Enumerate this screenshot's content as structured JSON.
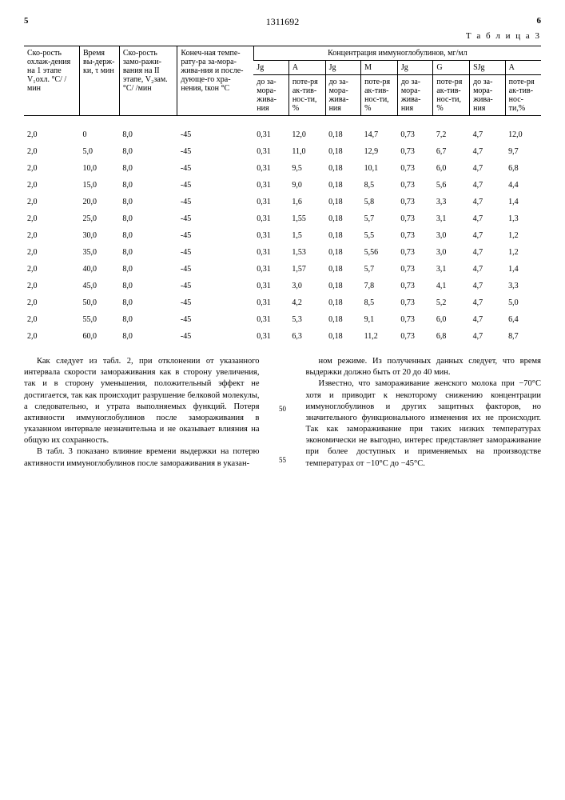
{
  "header": {
    "page_left": "5",
    "doc_number": "1311692",
    "page_right": "6",
    "table_label": "Т а б л и ц а   3"
  },
  "table": {
    "group_header": "Концентрация иммуноглобулинов, мг/мл",
    "col_headers": {
      "c1": "Ско-рость охлаж-дения на 1 этапе V₁охл. °C/ /мин",
      "c2": "Время вы-держ-ки, τ мин",
      "c3": "Ско-рость замо-ражи-вания на II этапе, V₂зам. °C/ /мин",
      "c4": "Конеч-ная темпе-рату-ра за-мора-жива-ния и после-дующе-го хра-нения, tкон °C"
    },
    "sub_headers": {
      "s1": "Jg",
      "s2": "A",
      "s3": "Jg",
      "s4": "M",
      "s5": "Jg",
      "s6": "G",
      "s7": "SJg",
      "s8": "A"
    },
    "sub2_headers": {
      "a1": "до за-мора-жива-ния",
      "a2": "поте-ря ак-тив-нос-ти, %",
      "a3": "до за-мора-жива-ния",
      "a4": "поте-ря ак-тив-нос-ти, %",
      "a5": "до за-мора-жива-ния",
      "a6": "поте-ря ак-тив-нос-ти, %",
      "a7": "до за-мора-жива-ния",
      "a8": "поте-ря ак-тив-нос-ти,%"
    },
    "rows": [
      [
        "2,0",
        "0",
        "8,0",
        "-45",
        "0,31",
        "12,0",
        "0,18",
        "14,7",
        "0,73",
        "7,2",
        "4,7",
        "12,0"
      ],
      [
        "2,0",
        "5,0",
        "8,0",
        "-45",
        "0,31",
        "11,0",
        "0,18",
        "12,9",
        "0,73",
        "6,7",
        "4,7",
        "9,7"
      ],
      [
        "2,0",
        "10,0",
        "8,0",
        "-45",
        "0,31",
        "9,5",
        "0,18",
        "10,1",
        "0,73",
        "6,0",
        "4,7",
        "6,8"
      ],
      [
        "2,0",
        "15,0",
        "8,0",
        "-45",
        "0,31",
        "9,0",
        "0,18",
        "8,5",
        "0,73",
        "5,6",
        "4,7",
        "4,4"
      ],
      [
        "2,0",
        "20,0",
        "8,0",
        "-45",
        "0,31",
        "1,6",
        "0,18",
        "5,8",
        "0,73",
        "3,3",
        "4,7",
        "1,4"
      ],
      [
        "2,0",
        "25,0",
        "8,0",
        "-45",
        "0,31",
        "1,55",
        "0,18",
        "5,7",
        "0,73",
        "3,1",
        "4,7",
        "1,3"
      ],
      [
        "2,0",
        "30,0",
        "8,0",
        "-45",
        "0,31",
        "1,5",
        "0,18",
        "5,5",
        "0,73",
        "3,0",
        "4,7",
        "1,2"
      ],
      [
        "2,0",
        "35,0",
        "8,0",
        "-45",
        "0,31",
        "1,53",
        "0,18",
        "5,56",
        "0,73",
        "3,0",
        "4,7",
        "1,2"
      ],
      [
        "2,0",
        "40,0",
        "8,0",
        "-45",
        "0,31",
        "1,57",
        "0,18",
        "5,7",
        "0,73",
        "3,1",
        "4,7",
        "1,4"
      ],
      [
        "2,0",
        "45,0",
        "8,0",
        "-45",
        "0,31",
        "3,0",
        "0,18",
        "7,8",
        "0,73",
        "4,1",
        "4,7",
        "3,3"
      ],
      [
        "2,0",
        "50,0",
        "8,0",
        "-45",
        "0,31",
        "4,2",
        "0,18",
        "8,5",
        "0,73",
        "5,2",
        "4,7",
        "5,0"
      ],
      [
        "2,0",
        "55,0",
        "8,0",
        "-45",
        "0,31",
        "5,3",
        "0,18",
        "9,1",
        "0,73",
        "6,0",
        "4,7",
        "6,4"
      ],
      [
        "2,0",
        "60,0",
        "8,0",
        "-45",
        "0,31",
        "6,3",
        "0,18",
        "11,2",
        "0,73",
        "6,8",
        "4,7",
        "8,7"
      ]
    ]
  },
  "text": {
    "left_p1": "Как следует из табл. 2, при отклонении от указанного интервала скорости замораживания как в сторону увеличения, так и в сторону уменьшения, положительный эффект не достигается, так как происходит разрушение белковой молекулы, а следовательно, и утрата выполняемых функций. Потеря активности иммуноглобулинов после замораживания в указанном интервале незначительна и не оказывает влияния на общую их сохранность.",
    "left_p2": "В табл. 3 показано влияние времени выдержки на потерю активности иммуноглобулинов после замораживания в указан-",
    "right_p1": "ном режиме. Из полученных данных следует, что время выдержки должно быть от 20 до 40 мин.",
    "right_p2": "Известно, что замораживание женского молока при −70°С хотя и приводит к некоторому снижению концентрации иммуноглобулинов и других защитных факторов, но значительного функционального изменения их не происходит. Так как замораживание при таких низких температурах экономически не выгодно, интерес представляет замораживание при более доступных и применяемых на производстве температурах от −10°С до −45°С.",
    "ln50": "50",
    "ln55": "55"
  }
}
